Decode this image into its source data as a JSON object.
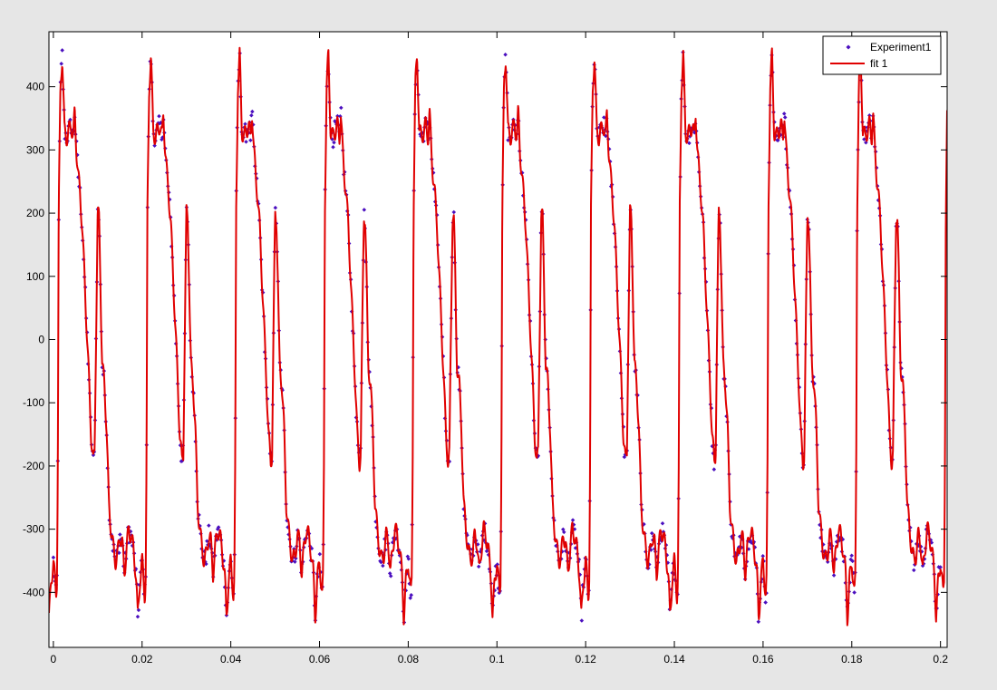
{
  "colors": {
    "figure_background": "#e6e6e6",
    "axes_background": "#ffffff",
    "experiment_marker": "#4b0fbf",
    "fit_line": "#e00000",
    "axis": "#000000"
  },
  "chart_data": {
    "type": "scatter",
    "title": "",
    "xlabel": "",
    "ylabel": "",
    "xlim": [
      -0.001,
      0.2015
    ],
    "ylim": [
      -487,
      487
    ],
    "x_ticks": [
      0,
      0.02,
      0.04,
      0.06,
      0.08,
      0.1,
      0.12,
      0.14,
      0.16,
      0.18,
      0.2
    ],
    "x_tick_labels": [
      "0",
      "0.02",
      "0.04",
      "0.06",
      "0.08",
      "0.1",
      "0.12",
      "0.14",
      "0.16",
      "0.18",
      "0.2"
    ],
    "y_ticks": [
      -400,
      -300,
      -200,
      -100,
      0,
      100,
      200,
      300,
      400
    ],
    "y_tick_labels": [
      "-400",
      "-300",
      "-200",
      "-100",
      "0",
      "100",
      "200",
      "300",
      "400"
    ],
    "grid": false,
    "legend": {
      "position": "top-right",
      "entries": [
        "Experiment1",
        "fit 1"
      ]
    },
    "period": 0.02,
    "waveform_one_period": {
      "t": [
        0,
        0.0006,
        0.0008,
        0.001,
        0.0012,
        0.0016,
        0.002,
        0.0025,
        0.003,
        0.0035,
        0.004,
        0.0045,
        0.0048,
        0.0052,
        0.0056,
        0.006,
        0.0065,
        0.007,
        0.0075,
        0.008,
        0.0085,
        0.009,
        0.0093,
        0.0095,
        0.0098,
        0.01,
        0.0103,
        0.0106,
        0.0108,
        0.011,
        0.0115,
        0.012,
        0.0125,
        0.013,
        0.0135,
        0.014,
        0.0145,
        0.015,
        0.0155,
        0.016,
        0.0165,
        0.017,
        0.0175,
        0.018,
        0.0183,
        0.0186,
        0.0188,
        0.019,
        0.0192,
        0.0195,
        0.0197,
        0.02
      ],
      "y": [
        -350,
        -405,
        -380,
        -200,
        200,
        400,
        450,
        330,
        320,
        330,
        340,
        320,
        360,
        300,
        260,
        230,
        180,
        100,
        20,
        -60,
        -150,
        -195,
        -180,
        -60,
        100,
        200,
        190,
        100,
        20,
        -40,
        -70,
        -140,
        -260,
        -300,
        -330,
        -350,
        -340,
        -310,
        -320,
        -370,
        -330,
        -300,
        -310,
        -330,
        -350,
        -370,
        -400,
        -440,
        -420,
        -380,
        -370,
        -350
      ]
    },
    "series": [
      {
        "name": "Experiment1",
        "style": "points",
        "x_range": [
          0,
          0.2
        ],
        "n_points": 1000
      },
      {
        "name": "fit 1",
        "style": "line",
        "x_range": [
          -0.001,
          0.2015
        ]
      }
    ]
  }
}
